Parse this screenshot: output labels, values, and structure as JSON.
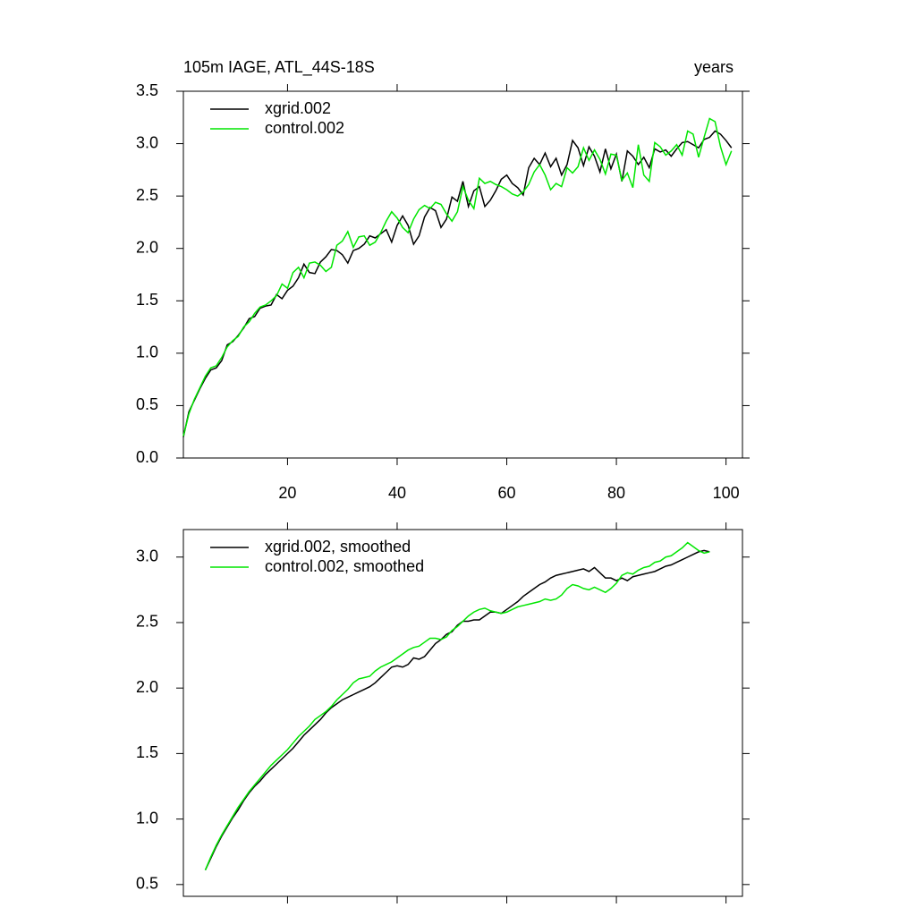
{
  "chart_data": [
    {
      "type": "line",
      "title": "105m IAGE, ATL_44S-18S",
      "right_title": "years",
      "x": [
        1,
        2,
        3,
        4,
        5,
        6,
        7,
        8,
        9,
        10,
        11,
        12,
        13,
        14,
        15,
        16,
        17,
        18,
        19,
        20,
        21,
        22,
        23,
        24,
        25,
        26,
        27,
        28,
        29,
        30,
        31,
        32,
        33,
        34,
        35,
        36,
        37,
        38,
        39,
        40,
        41,
        42,
        43,
        44,
        45,
        46,
        47,
        48,
        49,
        50,
        51,
        52,
        53,
        54,
        55,
        56,
        57,
        58,
        59,
        60,
        61,
        62,
        63,
        64,
        65,
        66,
        67,
        68,
        69,
        70,
        71,
        72,
        73,
        74,
        75,
        76,
        77,
        78,
        79,
        80,
        81,
        82,
        83,
        84,
        85,
        86,
        87,
        88,
        89,
        90,
        91,
        92,
        93,
        94,
        95,
        96,
        97,
        98,
        99,
        100,
        101
      ],
      "series": [
        {
          "name": "xgrid.002",
          "color": "#000000",
          "values": [
            0.2,
            0.44,
            0.55,
            0.66,
            0.76,
            0.84,
            0.86,
            0.93,
            1.08,
            1.11,
            1.17,
            1.24,
            1.33,
            1.35,
            1.43,
            1.45,
            1.46,
            1.56,
            1.52,
            1.6,
            1.64,
            1.72,
            1.85,
            1.77,
            1.76,
            1.87,
            1.92,
            1.99,
            1.98,
            1.94,
            1.86,
            1.98,
            2.0,
            2.04,
            2.12,
            2.1,
            2.14,
            2.18,
            2.06,
            2.22,
            2.31,
            2.22,
            2.04,
            2.12,
            2.3,
            2.39,
            2.36,
            2.2,
            2.28,
            2.49,
            2.45,
            2.64,
            2.4,
            2.55,
            2.59,
            2.4,
            2.46,
            2.55,
            2.66,
            2.7,
            2.62,
            2.58,
            2.51,
            2.77,
            2.86,
            2.8,
            2.91,
            2.78,
            2.86,
            2.7,
            2.8,
            3.03,
            2.96,
            2.79,
            2.97,
            2.88,
            2.73,
            2.95,
            2.76,
            2.9,
            2.64,
            2.93,
            2.88,
            2.8,
            2.87,
            2.77,
            2.95,
            2.92,
            2.94,
            2.88,
            2.95,
            3.01,
            3.02,
            2.99,
            2.96,
            3.04,
            3.06,
            3.12,
            3.09,
            3.03,
            2.96
          ]
        },
        {
          "name": "control.002",
          "color": "#00e600",
          "values": [
            0.21,
            0.42,
            0.56,
            0.67,
            0.78,
            0.86,
            0.88,
            0.96,
            1.06,
            1.12,
            1.16,
            1.25,
            1.3,
            1.38,
            1.44,
            1.46,
            1.5,
            1.55,
            1.66,
            1.62,
            1.77,
            1.82,
            1.72,
            1.86,
            1.87,
            1.84,
            1.78,
            1.82,
            2.03,
            2.07,
            2.16,
            2.01,
            2.11,
            2.12,
            2.03,
            2.06,
            2.15,
            2.26,
            2.35,
            2.29,
            2.2,
            2.15,
            2.28,
            2.37,
            2.41,
            2.38,
            2.44,
            2.42,
            2.33,
            2.26,
            2.35,
            2.59,
            2.46,
            2.38,
            2.67,
            2.62,
            2.64,
            2.61,
            2.59,
            2.56,
            2.52,
            2.5,
            2.54,
            2.61,
            2.73,
            2.8,
            2.7,
            2.56,
            2.62,
            2.59,
            2.77,
            2.72,
            2.78,
            2.96,
            2.84,
            2.94,
            2.85,
            2.71,
            2.9,
            2.89,
            2.65,
            2.72,
            2.58,
            2.99,
            2.7,
            2.64,
            3.01,
            2.97,
            2.89,
            2.93,
            2.99,
            2.89,
            3.12,
            3.09,
            2.87,
            3.06,
            3.24,
            3.21,
            2.97,
            2.8,
            2.93
          ]
        }
      ],
      "xlim": [
        1,
        103
      ],
      "xticks": [
        20,
        40,
        60,
        80,
        100
      ],
      "xtick_labels": true,
      "ylim": [
        0,
        3.5
      ],
      "yticks": [
        {
          "value": 0,
          "label": "0.0"
        },
        0.5,
        {
          "value": 1,
          "label": "1.0"
        },
        1.5,
        {
          "value": 2,
          "label": "2.0"
        },
        2.5,
        {
          "value": 3,
          "label": "3.0"
        },
        3.5
      ]
    },
    {
      "type": "line",
      "x": [
        5,
        6,
        7,
        8,
        9,
        10,
        11,
        12,
        13,
        14,
        15,
        16,
        17,
        18,
        19,
        20,
        21,
        22,
        23,
        24,
        25,
        26,
        27,
        28,
        29,
        30,
        31,
        32,
        33,
        34,
        35,
        36,
        37,
        38,
        39,
        40,
        41,
        42,
        43,
        44,
        45,
        46,
        47,
        48,
        49,
        50,
        51,
        52,
        53,
        54,
        55,
        56,
        57,
        58,
        59,
        60,
        61,
        62,
        63,
        64,
        65,
        66,
        67,
        68,
        69,
        70,
        71,
        72,
        73,
        74,
        75,
        76,
        77,
        78,
        79,
        80,
        81,
        82,
        83,
        84,
        85,
        86,
        87,
        88,
        89,
        90,
        91,
        92,
        93,
        94,
        95,
        96,
        97
      ],
      "series": [
        {
          "name": "xgrid.002, smoothed",
          "color": "#000000",
          "values": [
            0.61,
            0.7,
            0.79,
            0.87,
            0.94,
            1.01,
            1.07,
            1.14,
            1.2,
            1.25,
            1.29,
            1.34,
            1.38,
            1.42,
            1.46,
            1.5,
            1.54,
            1.59,
            1.64,
            1.68,
            1.72,
            1.76,
            1.81,
            1.85,
            1.88,
            1.91,
            1.93,
            1.95,
            1.97,
            1.99,
            2.01,
            2.04,
            2.08,
            2.12,
            2.16,
            2.17,
            2.16,
            2.18,
            2.23,
            2.22,
            2.24,
            2.29,
            2.34,
            2.37,
            2.41,
            2.43,
            2.48,
            2.51,
            2.51,
            2.52,
            2.52,
            2.55,
            2.58,
            2.58,
            2.57,
            2.6,
            2.63,
            2.66,
            2.7,
            2.73,
            2.76,
            2.79,
            2.81,
            2.84,
            2.86,
            2.87,
            2.88,
            2.89,
            2.9,
            2.91,
            2.89,
            2.92,
            2.88,
            2.84,
            2.84,
            2.82,
            2.84,
            2.82,
            2.85,
            2.86,
            2.87,
            2.88,
            2.89,
            2.91,
            2.93,
            2.94,
            2.96,
            2.98,
            3.0,
            3.02,
            3.04,
            3.05,
            3.04
          ]
        },
        {
          "name": "control.002, smoothed",
          "color": "#00e600",
          "values": [
            0.61,
            0.71,
            0.8,
            0.88,
            0.95,
            1.02,
            1.09,
            1.15,
            1.21,
            1.26,
            1.31,
            1.36,
            1.41,
            1.45,
            1.49,
            1.53,
            1.58,
            1.63,
            1.67,
            1.71,
            1.76,
            1.79,
            1.82,
            1.86,
            1.91,
            1.95,
            1.99,
            2.04,
            2.07,
            2.08,
            2.09,
            2.13,
            2.16,
            2.18,
            2.2,
            2.23,
            2.26,
            2.29,
            2.31,
            2.32,
            2.35,
            2.38,
            2.38,
            2.37,
            2.39,
            2.44,
            2.47,
            2.51,
            2.55,
            2.58,
            2.6,
            2.61,
            2.59,
            2.58,
            2.57,
            2.58,
            2.6,
            2.62,
            2.63,
            2.64,
            2.65,
            2.66,
            2.68,
            2.67,
            2.68,
            2.71,
            2.76,
            2.79,
            2.78,
            2.76,
            2.75,
            2.77,
            2.75,
            2.73,
            2.76,
            2.8,
            2.86,
            2.88,
            2.87,
            2.9,
            2.92,
            2.93,
            2.96,
            2.97,
            3.0,
            3.01,
            3.04,
            3.07,
            3.11,
            3.08,
            3.05,
            3.03,
            3.04
          ]
        }
      ],
      "xlim": [
        1,
        103
      ],
      "xticks": [
        20,
        40,
        60,
        80,
        100
      ],
      "xtick_labels": false,
      "ylim": [
        0.41,
        3.21
      ],
      "yticks": [
        0.5,
        {
          "value": 1,
          "label": "1.0"
        },
        1.5,
        {
          "value": 2,
          "label": "2.0"
        },
        2.5,
        {
          "value": 3,
          "label": "3.0"
        }
      ]
    }
  ]
}
